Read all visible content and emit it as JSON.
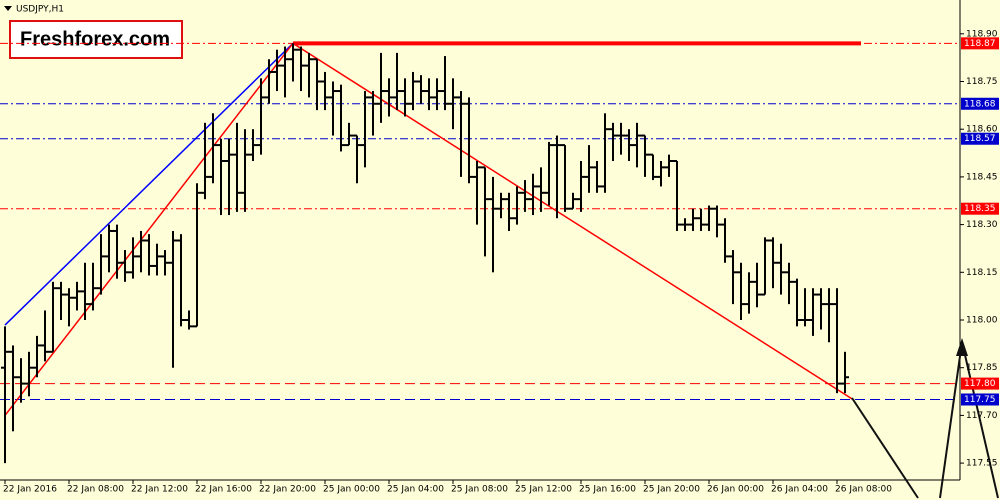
{
  "chart_data": {
    "type": "ohlc",
    "title": "USDJPY,H1",
    "watermark": "Freshforex.com",
    "categories": [
      "22 Jan 2016",
      null,
      null,
      null,
      null,
      null,
      null,
      null,
      "22 Jan 08:00",
      null,
      null,
      null,
      null,
      null,
      null,
      null,
      "22 Jan 12:00",
      null,
      null,
      null,
      null,
      null,
      null,
      null,
      "22 Jan 16:00",
      null,
      null,
      null,
      null,
      null,
      null,
      null,
      "22 Jan 20:00",
      null,
      null,
      null,
      null,
      null,
      null,
      null,
      "25 Jan 00:00",
      null,
      null,
      null,
      null,
      null,
      null,
      null,
      "25 Jan 04:00",
      null,
      null,
      null,
      null,
      null,
      null,
      null,
      "25 Jan 08:00",
      null,
      null,
      null,
      null,
      null,
      null,
      null,
      "25 Jan 12:00",
      null,
      null,
      null,
      null,
      null,
      null,
      null,
      "25 Jan 16:00",
      null,
      null,
      null,
      null,
      null,
      null,
      null,
      "25 Jan 20:00",
      null,
      null,
      null,
      null,
      null,
      null,
      null,
      "26 Jan 00:00",
      null,
      null,
      null,
      null,
      null,
      null,
      null,
      "26 Jan 04:00",
      null,
      null,
      null,
      null,
      null,
      null,
      null,
      "26 Jan 08:00",
      null
    ],
    "open": [
      117.85,
      117.9,
      117.82,
      117.8,
      117.85,
      117.92,
      117.9,
      118.1,
      118.08,
      118.07,
      118.09,
      118.05,
      118.1,
      118.2,
      118.28,
      118.18,
      118.15,
      118.2,
      118.25,
      118.17,
      118.2,
      118.18,
      118.25,
      118.0,
      117.98,
      118.4,
      118.45,
      118.55,
      118.5,
      118.52,
      118.4,
      118.52,
      118.55,
      118.7,
      118.78,
      118.8,
      118.82,
      118.85,
      118.8,
      118.82,
      118.75,
      118.7,
      118.72,
      118.55,
      118.58,
      118.55,
      118.7,
      118.68,
      118.72,
      118.7,
      118.72,
      118.68,
      118.75,
      118.72,
      118.7,
      118.72,
      118.68,
      118.7,
      118.68,
      118.45,
      118.48,
      118.38,
      118.35,
      118.38,
      118.32,
      118.4,
      118.38,
      118.42,
      118.4,
      118.55,
      118.55,
      118.35,
      118.38,
      118.45,
      118.48,
      118.42,
      118.6,
      118.58,
      118.58,
      118.55,
      118.58,
      118.52,
      118.45,
      118.48,
      118.5,
      118.3,
      118.3,
      118.32,
      118.3,
      118.35,
      118.3,
      118.2,
      118.15,
      118.05,
      118.12,
      118.08,
      118.25,
      118.18,
      118.15,
      118.12,
      118.0,
      118.0,
      118.08,
      118.05,
      118.05,
      117.8
    ],
    "high": [
      117.98,
      117.92,
      117.88,
      117.9,
      117.95,
      118.03,
      118.12,
      118.12,
      118.1,
      118.12,
      118.18,
      118.18,
      118.27,
      118.3,
      118.3,
      118.22,
      118.26,
      118.28,
      118.27,
      118.24,
      118.22,
      118.28,
      118.27,
      118.03,
      118.43,
      118.62,
      118.65,
      118.57,
      118.57,
      118.62,
      118.6,
      118.6,
      118.76,
      118.82,
      118.85,
      118.86,
      118.87,
      118.86,
      118.84,
      118.82,
      118.78,
      118.75,
      118.74,
      118.62,
      118.58,
      118.72,
      118.72,
      118.84,
      118.76,
      118.84,
      118.76,
      118.78,
      118.77,
      118.76,
      118.76,
      118.83,
      118.76,
      118.72,
      118.7,
      118.5,
      118.48,
      118.45,
      118.4,
      118.4,
      118.42,
      118.44,
      118.46,
      118.48,
      118.56,
      118.58,
      118.55,
      118.4,
      118.5,
      118.55,
      118.5,
      118.65,
      118.62,
      118.62,
      118.6,
      118.62,
      118.58,
      118.52,
      118.5,
      118.52,
      118.5,
      118.32,
      118.35,
      118.35,
      118.36,
      118.36,
      118.32,
      118.22,
      118.18,
      118.15,
      118.18,
      118.26,
      118.26,
      118.24,
      118.18,
      118.13,
      118.1,
      118.1,
      118.1,
      118.1,
      118.1,
      117.9
    ],
    "low": [
      117.55,
      117.65,
      117.74,
      117.76,
      117.82,
      117.87,
      117.9,
      118.0,
      117.98,
      118.03,
      118.0,
      118.03,
      118.08,
      118.15,
      118.13,
      118.12,
      118.13,
      118.15,
      118.14,
      118.14,
      118.14,
      117.85,
      117.98,
      117.97,
      117.98,
      118.38,
      118.43,
      118.33,
      118.33,
      118.34,
      118.34,
      118.5,
      118.52,
      118.68,
      118.72,
      118.7,
      118.75,
      118.72,
      118.7,
      118.66,
      118.66,
      118.58,
      118.53,
      118.55,
      118.43,
      118.48,
      118.58,
      118.62,
      118.64,
      118.66,
      118.64,
      118.66,
      118.68,
      118.66,
      118.66,
      118.66,
      118.6,
      118.45,
      118.43,
      118.3,
      118.2,
      118.15,
      118.32,
      118.28,
      118.3,
      118.34,
      118.33,
      118.34,
      118.36,
      118.32,
      118.34,
      118.35,
      118.34,
      118.4,
      118.4,
      118.4,
      118.5,
      118.52,
      118.5,
      118.48,
      118.45,
      118.44,
      118.42,
      118.45,
      118.28,
      118.28,
      118.28,
      118.28,
      118.28,
      118.26,
      118.18,
      118.05,
      118.0,
      118.02,
      118.04,
      118.08,
      118.1,
      118.08,
      118.05,
      117.98,
      117.98,
      117.95,
      117.97,
      117.93,
      117.77,
      117.77
    ],
    "close": [
      117.9,
      117.82,
      117.8,
      117.85,
      117.92,
      117.9,
      118.1,
      118.08,
      118.07,
      118.09,
      118.05,
      118.1,
      118.2,
      118.28,
      118.18,
      118.15,
      118.2,
      118.25,
      118.17,
      118.2,
      118.18,
      118.25,
      118.0,
      117.98,
      118.4,
      118.45,
      118.55,
      118.5,
      118.52,
      118.4,
      118.52,
      118.55,
      118.7,
      118.78,
      118.8,
      118.82,
      118.85,
      118.8,
      118.82,
      118.75,
      118.7,
      118.72,
      118.55,
      118.58,
      118.55,
      118.7,
      118.68,
      118.72,
      118.7,
      118.72,
      118.68,
      118.75,
      118.72,
      118.7,
      118.72,
      118.68,
      118.7,
      118.68,
      118.45,
      118.48,
      118.38,
      118.35,
      118.38,
      118.32,
      118.4,
      118.38,
      118.42,
      118.4,
      118.55,
      118.55,
      118.35,
      118.38,
      118.45,
      118.48,
      118.42,
      118.6,
      118.58,
      118.58,
      118.55,
      118.58,
      118.52,
      118.45,
      118.48,
      118.5,
      118.3,
      118.3,
      118.32,
      118.3,
      118.35,
      118.3,
      118.2,
      118.15,
      118.05,
      118.12,
      118.08,
      118.25,
      118.18,
      118.15,
      118.12,
      118.0,
      118.0,
      118.08,
      118.05,
      118.05,
      117.8,
      117.82
    ],
    "color": "#000000",
    "ylim": [
      117.5,
      119.0
    ],
    "yticks": [
      {
        "value": 118.9,
        "label": "118.90"
      },
      {
        "value": 118.75,
        "label": "118.75"
      },
      {
        "value": 118.6,
        "label": "118.60"
      },
      {
        "value": 118.45,
        "label": "118.45"
      },
      {
        "value": 118.3,
        "label": "118.30"
      },
      {
        "value": 118.15,
        "label": "118.15"
      },
      {
        "value": 118.0,
        "label": "118.00"
      },
      {
        "value": 117.85,
        "label": "117.85"
      },
      {
        "value": 117.7,
        "label": "117.70"
      },
      {
        "value": 117.55,
        "label": "117.55"
      }
    ],
    "levels": [
      {
        "value": 118.87,
        "color": "#ff0000",
        "dash": "dashdot"
      },
      {
        "value": 118.68,
        "color": "#0000cc",
        "dash": "dashdot"
      },
      {
        "value": 118.57,
        "color": "#0000cc",
        "dash": "dashdot"
      },
      {
        "value": 118.35,
        "color": "#ff0000",
        "dash": "dashdot"
      },
      {
        "value": 117.8,
        "label": "117.80",
        "color": "#ff0000",
        "dash": "dashed"
      },
      {
        "value": 117.75,
        "color": "#0000cc",
        "dash": "dashed"
      }
    ],
    "trendlines": [
      {
        "color": "#0000ff",
        "x": [
          0,
          36
        ],
        "y": [
          117.984,
          118.87
        ]
      },
      {
        "color": "#ff0000",
        "x": [
          0,
          36,
          106
        ],
        "y": [
          117.7,
          118.87,
          117.75
        ]
      },
      {
        "color": "#ff0000",
        "thick": true,
        "x": [
          36,
          107
        ],
        "y": [
          118.87,
          118.87
        ]
      }
    ]
  }
}
